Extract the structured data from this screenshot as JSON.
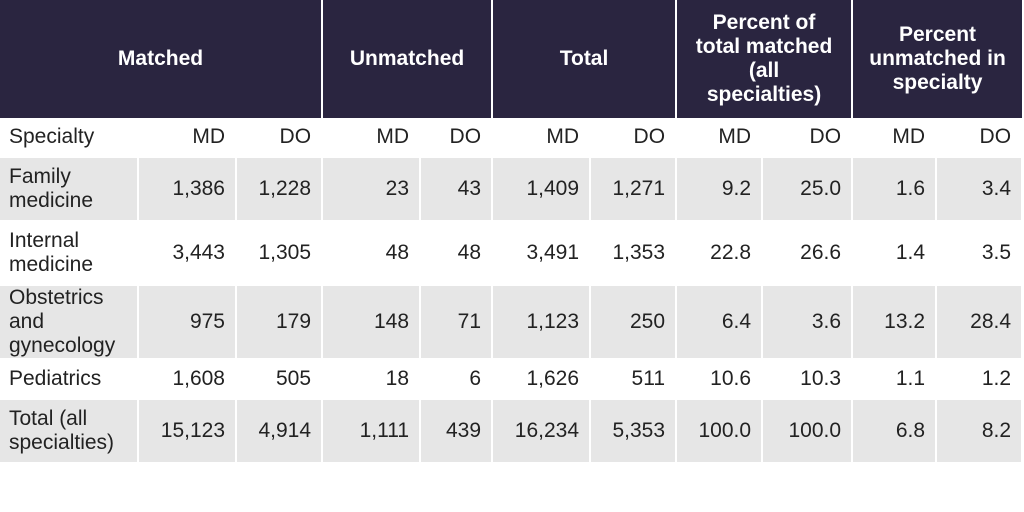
{
  "header": {
    "groups": [
      "Matched",
      "Unmatched",
      "Total",
      "Percent of total matched (all specialties)",
      "Percent unmatched in specialty"
    ]
  },
  "table": {
    "columns": [
      "Specialty",
      "MD",
      "DO",
      "MD",
      "DO",
      "MD",
      "DO",
      "MD",
      "DO",
      "MD",
      "DO"
    ],
    "rows": [
      [
        "Family medicine",
        "1,386",
        "1,228",
        "23",
        "43",
        "1,409",
        "1,271",
        "9.2",
        "25.0",
        "1.6",
        "3.4"
      ],
      [
        "Internal medicine",
        "3,443",
        "1,305",
        "48",
        "48",
        "3,491",
        "1,353",
        "22.8",
        "26.6",
        "1.4",
        "3.5"
      ],
      [
        "Obstetrics and gynecology",
        "975",
        "179",
        "148",
        "71",
        "1,123",
        "250",
        "6.4",
        "3.6",
        "13.2",
        "28.4"
      ],
      [
        "Pediatrics",
        "1,608",
        "505",
        "18",
        "6",
        "1,626",
        "511",
        "10.6",
        "10.3",
        "1.1",
        "1.2"
      ],
      [
        "Total (all specialties)",
        "15,123",
        "4,914",
        "1,111",
        "439",
        "16,234",
        "5,353",
        "100.0",
        "100.0",
        "6.8",
        "8.2"
      ]
    ]
  }
}
